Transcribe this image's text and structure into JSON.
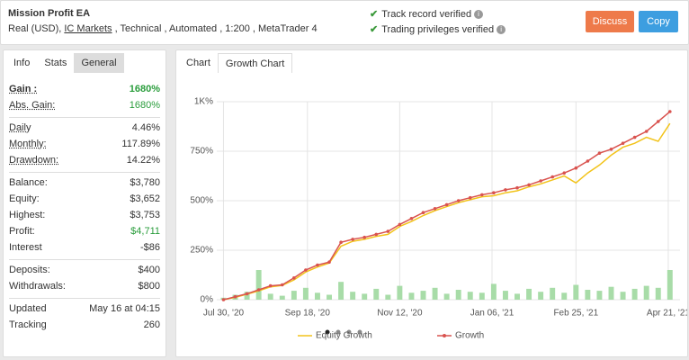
{
  "header": {
    "title": "Mission Profit EA",
    "subtitle": [
      "Real (USD),",
      "IC Markets",
      ", Technical , Automated , 1:200 , MetaTrader 4"
    ],
    "verified": [
      "Track record verified",
      "Trading privileges verified"
    ],
    "buttons": [
      {
        "label": "Discuss",
        "color": "#ee7a4a"
      },
      {
        "label": "Copy",
        "color": "#3d9ee0"
      }
    ]
  },
  "left_tabs": [
    "Info",
    "Stats",
    "General"
  ],
  "chart_tabs": [
    "Chart",
    "Growth Chart"
  ],
  "stats": [
    [
      {
        "label": "Gain :",
        "value": "1680%",
        "value_color": "#2a9d3c",
        "bold": true
      },
      {
        "label": "Abs. Gain:",
        "value": "1680%",
        "value_color": "#2a9d3c"
      }
    ],
    [
      {
        "label": "Daily",
        "value": "4.46%"
      },
      {
        "label": "Monthly:",
        "value": "117.89%"
      },
      {
        "label": "Drawdown:",
        "value": "14.22%"
      }
    ],
    [
      {
        "label": "Balance:",
        "value": "$3,780"
      },
      {
        "label": "Equity:",
        "value": "$3,652"
      },
      {
        "label": "Highest:",
        "value": "$3,753"
      },
      {
        "label": "Profit:",
        "value": "$4,711",
        "value_color": "#2a9d3c"
      },
      {
        "label": "Interest",
        "value": "-$86"
      }
    ],
    [
      {
        "label": "Deposits:",
        "value": "$400"
      },
      {
        "label": "Withdrawals:",
        "value": "$800"
      }
    ],
    [
      {
        "label": "Updated",
        "value": "May 16 at 04:15"
      },
      {
        "label": "Tracking",
        "value": "260"
      }
    ]
  ],
  "chart_data": {
    "type": "line",
    "x": [
      "2020-07-30",
      "2020-08-06",
      "2020-08-13",
      "2020-08-20",
      "2020-08-27",
      "2020-09-03",
      "2020-09-10",
      "2020-09-17",
      "2020-09-24",
      "2020-10-01",
      "2020-10-08",
      "2020-10-15",
      "2020-10-22",
      "2020-10-29",
      "2020-11-05",
      "2020-11-12",
      "2020-11-19",
      "2020-11-26",
      "2020-12-03",
      "2020-12-10",
      "2020-12-17",
      "2020-12-24",
      "2020-12-31",
      "2021-01-07",
      "2021-01-14",
      "2021-01-21",
      "2021-01-28",
      "2021-02-04",
      "2021-02-11",
      "2021-02-18",
      "2021-02-25",
      "2021-03-04",
      "2021-03-11",
      "2021-03-18",
      "2021-03-25",
      "2021-04-01",
      "2021-04-08",
      "2021-04-15",
      "2021-04-22"
    ],
    "series": [
      {
        "name": "Equity Growth",
        "color": "#f2c31a",
        "values": [
          0,
          12,
          28,
          45,
          65,
          72,
          100,
          140,
          165,
          185,
          270,
          295,
          305,
          320,
          330,
          370,
          395,
          425,
          450,
          470,
          490,
          505,
          520,
          525,
          540,
          550,
          570,
          585,
          605,
          625,
          590,
          640,
          680,
          730,
          770,
          790,
          820,
          800,
          890
        ]
      },
      {
        "name": "Growth",
        "color": "#d9534f",
        "markers": true,
        "values": [
          0,
          15,
          30,
          50,
          70,
          75,
          110,
          150,
          175,
          190,
          290,
          305,
          315,
          330,
          345,
          380,
          410,
          440,
          460,
          480,
          500,
          515,
          530,
          540,
          555,
          565,
          580,
          600,
          620,
          640,
          665,
          700,
          740,
          760,
          790,
          820,
          850,
          900,
          950
        ]
      }
    ],
    "bars": {
      "color": "#a8dca8",
      "values": [
        10,
        25,
        40,
        150,
        30,
        20,
        45,
        60,
        35,
        25,
        90,
        40,
        30,
        55,
        25,
        70,
        35,
        45,
        60,
        30,
        50,
        40,
        35,
        80,
        45,
        30,
        55,
        40,
        60,
        35,
        75,
        50,
        45,
        65,
        40,
        55,
        70,
        60,
        150
      ]
    },
    "xlim": [
      "2020-07-26",
      "2021-04-28"
    ],
    "xticks": [
      {
        "value": "2020-07-30",
        "label": "Jul 30, '20"
      },
      {
        "value": "2020-09-18",
        "label": "Sep 18, '20"
      },
      {
        "value": "2020-11-12",
        "label": "Nov 12, '20"
      },
      {
        "value": "2021-01-06",
        "label": "Jan 06, '21"
      },
      {
        "value": "2021-02-25",
        "label": "Feb 25, '21"
      },
      {
        "value": "2021-04-21",
        "label": "Apr 21, '21"
      }
    ],
    "ylim": [
      0,
      1000
    ],
    "yticks": [
      {
        "value": 0,
        "label": "0%"
      },
      {
        "value": 250,
        "label": "250%"
      },
      {
        "value": 500,
        "label": "500%"
      },
      {
        "value": 750,
        "label": "750%"
      },
      {
        "value": 1000,
        "label": "1K%"
      }
    ],
    "grid": true,
    "legend": "bottom"
  }
}
